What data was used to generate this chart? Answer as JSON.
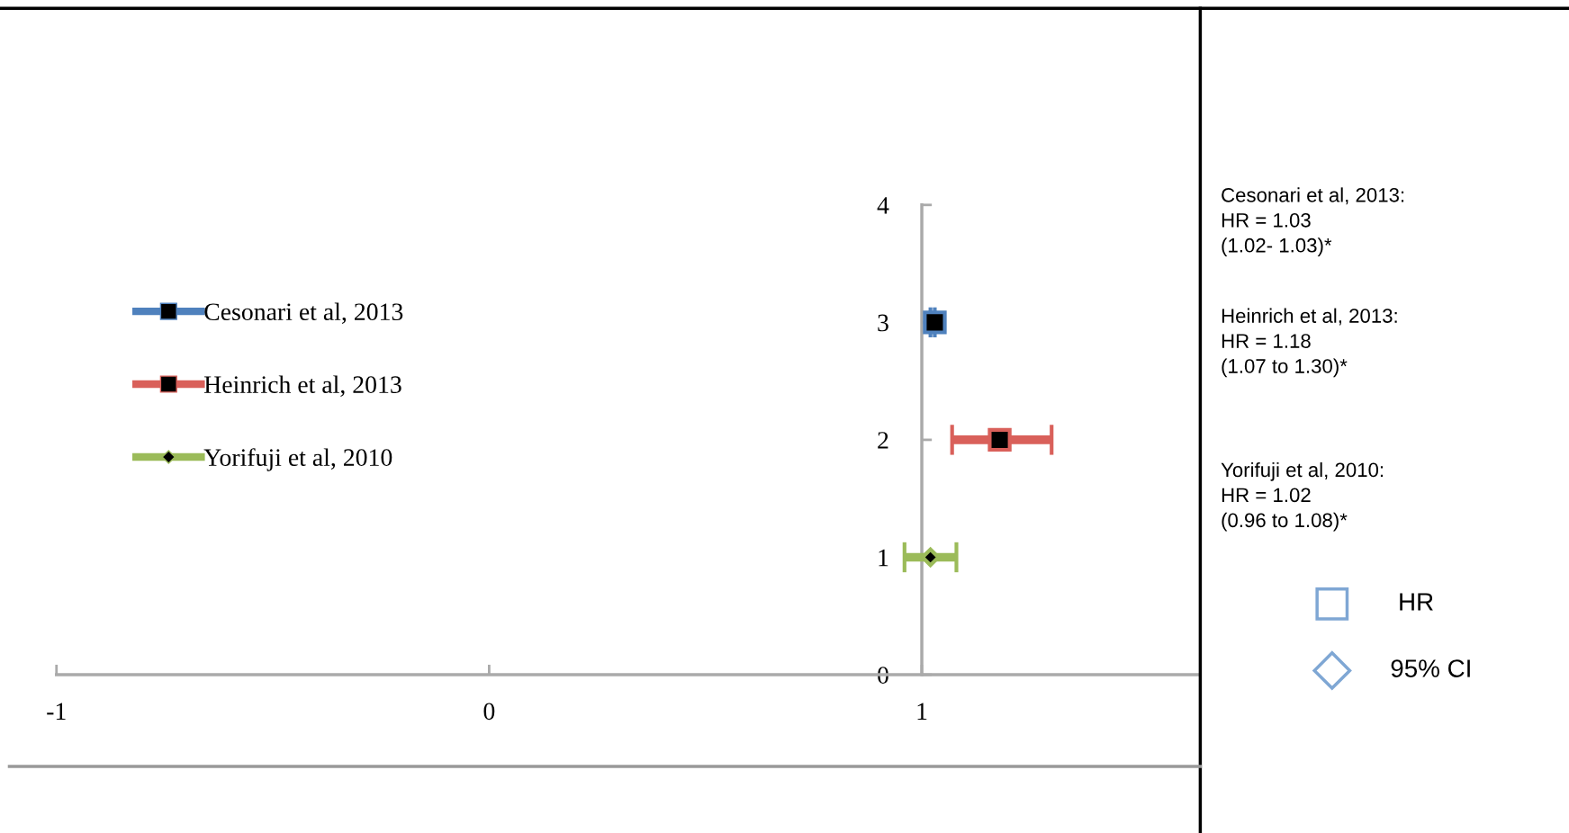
{
  "chart_data": {
    "type": "scatter",
    "xlim": [
      -1,
      1.64
    ],
    "xticks": [
      -1,
      0,
      1
    ],
    "ylim": [
      0,
      4
    ],
    "yticks": [
      0,
      1,
      2,
      3,
      4
    ],
    "legend": "top left",
    "grid": false,
    "line_style": "solid",
    "series": [
      {
        "name": "Cesonari et al, 2013",
        "color": "#4f81bd",
        "marker": "square",
        "x": [
          1.03
        ],
        "values": [
          3
        ],
        "xerrors": [
          [
            1.02,
            1.03
          ]
        ]
      },
      {
        "name": "Heinrich et al, 2013",
        "color": "#d9605a",
        "marker": "square",
        "x": [
          1.18
        ],
        "values": [
          2
        ],
        "xerrors": [
          [
            1.07,
            1.3
          ]
        ]
      },
      {
        "name": "Yorifuji et al, 2010",
        "color": "#9bbb59",
        "marker": "diamond",
        "x": [
          1.02
        ],
        "values": [
          1
        ],
        "xerrors": [
          [
            0.96,
            1.08
          ]
        ]
      }
    ],
    "annotations": [
      "Cesonari et al, 2013:\nHR = 1.03\n(1.02- 1.03)*",
      "Heinrich et al, 2013:\nHR = 1.18\n(1.07 to 1.30)*",
      "Yorifuji et al, 2010:\nHR = 1.02\n(0.96 to 1.08)*",
      "HR",
      "95% CI"
    ]
  }
}
